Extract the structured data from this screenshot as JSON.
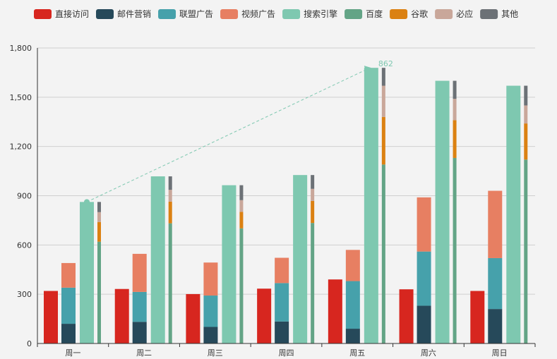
{
  "chart_data": {
    "type": "bar",
    "categories": [
      "周一",
      "周二",
      "周三",
      "周四",
      "周五",
      "周六",
      "周日"
    ],
    "ylim": [
      0,
      1800
    ],
    "yticks": [
      0,
      300,
      600,
      900,
      1200,
      1500,
      1800
    ],
    "ytick_labels": [
      "0",
      "300",
      "600",
      "900",
      "1,200",
      "1,500",
      "1,800"
    ],
    "grid": true,
    "legend_position": "top",
    "legend": [
      "直接访问",
      "邮件营销",
      "联盟广告",
      "视频广告",
      "搜索引擎",
      "百度",
      "谷歌",
      "必应",
      "其他"
    ],
    "series": [
      {
        "name": "直接访问",
        "stack": "direct",
        "color": "#d7261f",
        "values": [
          320,
          332,
          301,
          334,
          390,
          330,
          320
        ]
      },
      {
        "name": "邮件营销",
        "stack": "ad",
        "color": "#26495a",
        "values": [
          120,
          132,
          101,
          134,
          90,
          230,
          210
        ]
      },
      {
        "name": "联盟广告",
        "stack": "ad",
        "color": "#46a1ab",
        "values": [
          220,
          182,
          191,
          234,
          290,
          330,
          310
        ]
      },
      {
        "name": "视频广告",
        "stack": "ad",
        "color": "#e77f62",
        "values": [
          150,
          232,
          201,
          154,
          190,
          330,
          410
        ]
      },
      {
        "name": "搜索引擎",
        "stack": "search",
        "color": "#7ec8b0",
        "values": [
          862,
          1018,
          964,
          1026,
          1679,
          1600,
          1570
        ]
      },
      {
        "name": "百度",
        "stack": "engine",
        "color": "#63a486",
        "values": [
          620,
          732,
          701,
          734,
          1090,
          1130,
          1120
        ]
      },
      {
        "name": "谷歌",
        "stack": "engine",
        "color": "#db8112",
        "values": [
          120,
          132,
          101,
          134,
          290,
          230,
          220
        ]
      },
      {
        "name": "必应",
        "stack": "engine",
        "color": "#c9a79a",
        "values": [
          60,
          72,
          71,
          74,
          190,
          130,
          110
        ]
      },
      {
        "name": "其他",
        "stack": "engine",
        "color": "#6c7176",
        "values": [
          62,
          82,
          91,
          84,
          109,
          110,
          120
        ]
      }
    ],
    "markline": {
      "series": "搜索引擎",
      "from_category": "周一",
      "to_category": "周五",
      "from_value": 862,
      "to_value": 1679
    },
    "markpoint_label": "862"
  }
}
